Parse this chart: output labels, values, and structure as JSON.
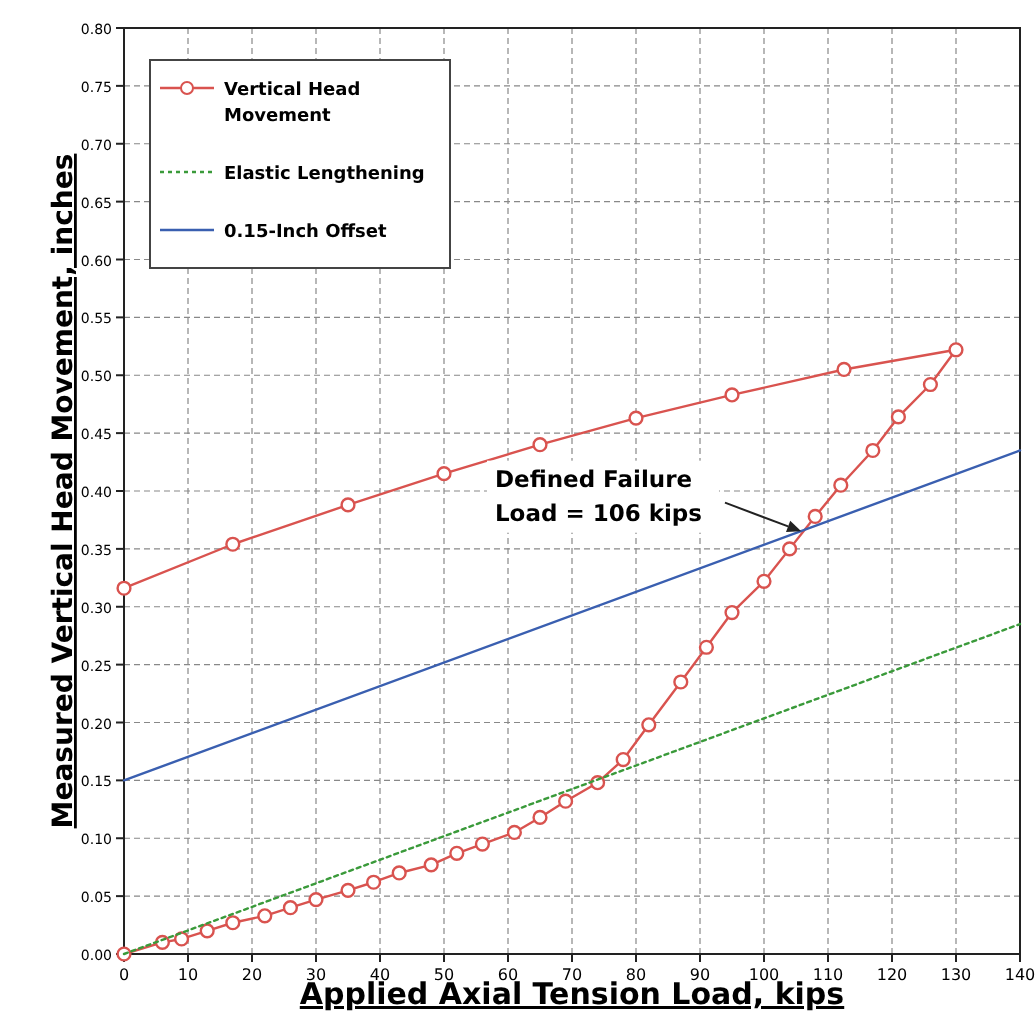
{
  "chart_data": {
    "type": "line",
    "xlabel": "Applied Axial Tension Load, kips",
    "ylabel": "Measured Vertical Head Movement, inches",
    "xlim": [
      0,
      140
    ],
    "xticks": [
      0,
      10,
      20,
      30,
      40,
      50,
      60,
      70,
      80,
      90,
      100,
      110,
      120,
      130,
      140
    ],
    "ylim": [
      0,
      0.8
    ],
    "yticks": [
      {
        "value": 0,
        "label": "0.00"
      },
      0.05,
      {
        "value": 0.1,
        "label": "0.10"
      },
      0.15,
      {
        "value": 0.2,
        "label": "0.20"
      },
      0.25,
      {
        "value": 0.3,
        "label": "0.30"
      },
      0.35,
      {
        "value": 0.4,
        "label": "0.40"
      },
      0.45,
      {
        "value": 0.5,
        "label": "0.50"
      },
      0.55,
      {
        "value": 0.6,
        "label": "0.60"
      },
      0.65,
      {
        "value": 0.7,
        "label": "0.70"
      },
      0.75,
      {
        "value": 0.8,
        "label": "0.80"
      }
    ],
    "grid": true,
    "legend": "top left",
    "series": [
      {
        "name": "Vertical Head Movement",
        "color": "#d9534f",
        "marker": "circle",
        "line_style": "solid",
        "x": [
          0,
          6,
          9,
          13,
          17,
          22,
          26,
          30,
          35,
          39,
          43,
          48,
          52,
          56,
          61,
          65,
          69,
          74,
          78,
          82,
          87,
          91,
          95,
          100,
          104,
          108,
          112,
          117,
          121,
          126,
          130,
          112.5,
          95,
          80,
          65,
          50,
          35,
          17,
          0
        ],
        "values": [
          0,
          0.01,
          0.013,
          0.02,
          0.027,
          0.033,
          0.04,
          0.047,
          0.055,
          0.062,
          0.07,
          0.077,
          0.087,
          0.095,
          0.105,
          0.118,
          0.132,
          0.148,
          0.168,
          0.198,
          0.235,
          0.265,
          0.295,
          0.322,
          0.35,
          0.378,
          0.405,
          0.435,
          0.464,
          0.492,
          0.522,
          0.505,
          0.483,
          0.463,
          0.44,
          0.415,
          0.388,
          0.354,
          0.316
        ]
      },
      {
        "name": "Elastic Lengthening",
        "color": "#3a9a3a",
        "marker": "none",
        "line_style": "dotted",
        "x": [
          0,
          140
        ],
        "values": [
          0,
          0.285
        ]
      },
      {
        "name": "0.15-Inch Offset",
        "color": "#3a5fb0",
        "marker": "none",
        "line_style": "solid",
        "x": [
          0,
          140
        ],
        "values": [
          0.15,
          0.435
        ]
      }
    ],
    "annotations": [
      "Defined Failure\nLoad = 106 kips"
    ]
  }
}
